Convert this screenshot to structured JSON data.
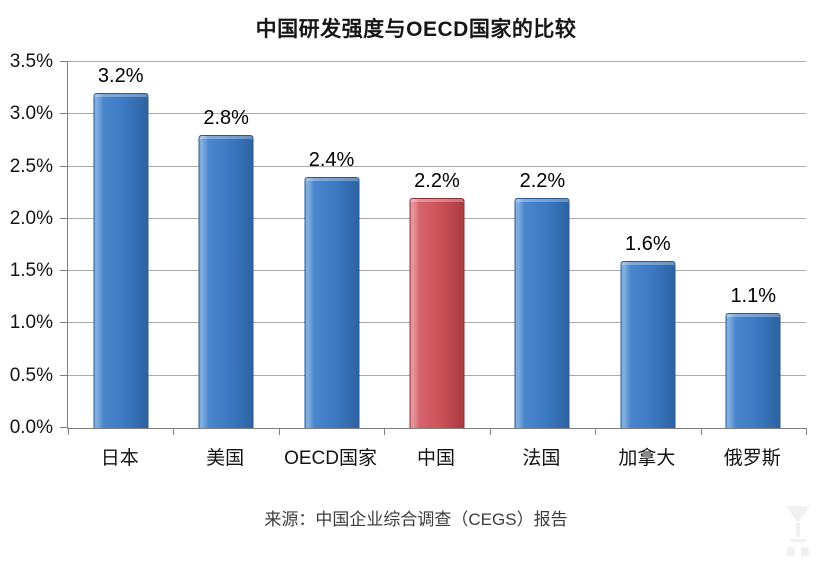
{
  "page": {
    "source": "来源：中国企业综合调查（CEGS）报告"
  },
  "chart_data": {
    "type": "bar",
    "title": "中国研发强度与OECD国家的比较",
    "categories": [
      "日本",
      "美国",
      "OECD国家",
      "中国",
      "法国",
      "加拿大",
      "俄罗斯"
    ],
    "values": [
      3.2,
      2.8,
      2.4,
      2.2,
      2.2,
      1.6,
      1.1
    ],
    "value_labels": [
      "3.2%",
      "2.8%",
      "2.4%",
      "2.2%",
      "2.2%",
      "1.6%",
      "1.1%"
    ],
    "highlight_index": 3,
    "highlight_category": "中国",
    "xlabel": "",
    "ylabel": "",
    "ylim": [
      0,
      3.5
    ],
    "ytick_step": 0.5,
    "ytick_labels": [
      "0.0%",
      "0.5%",
      "1.0%",
      "1.5%",
      "2.0%",
      "2.5%",
      "3.0%",
      "3.5%"
    ],
    "grid": true,
    "legend": "none",
    "colors": {
      "bar": "#3C7AC3",
      "bar_border": "#2A5A94",
      "highlight_bar": "#CE5158",
      "highlight_border": "#8F3237",
      "gridline": "#ABABAB",
      "axis": "#7F7F7F",
      "title_text": "#161616",
      "source_text": "#3D3D3D"
    }
  }
}
